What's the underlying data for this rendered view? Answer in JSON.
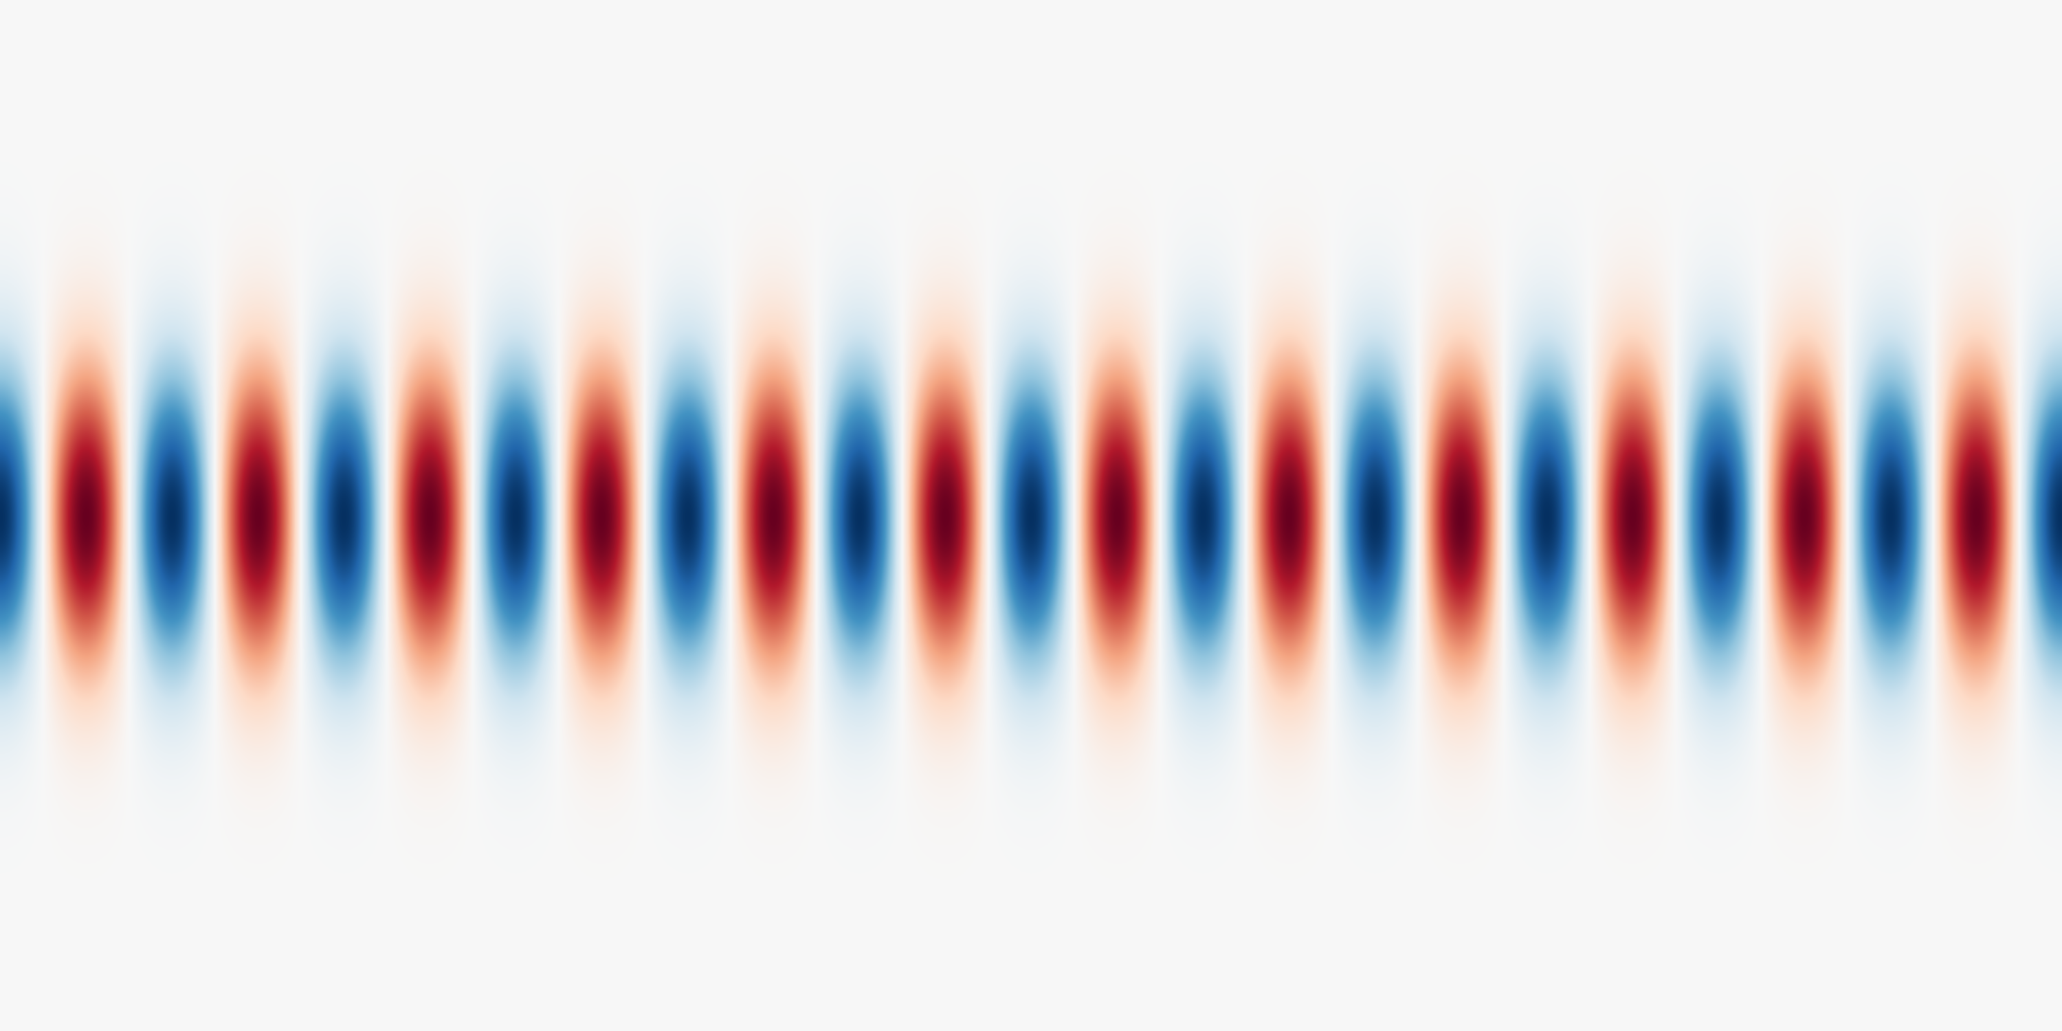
{
  "background_color": "#f7f7f7",
  "colormap": "RdBu",
  "colormap_stops": [
    "#053061",
    "#2166ac",
    "#4393c3",
    "#92c5de",
    "#d1e5f0",
    "#f7f7f7",
    "#fddbc7",
    "#f4a582",
    "#d6604d",
    "#b2182b",
    "#67001f"
  ],
  "pattern": {
    "type": "gaussian-modulated-cosine",
    "orientation": "horizontal",
    "visible_cycles": 12,
    "phase_at_left_edge": "blue-peak"
  }
}
